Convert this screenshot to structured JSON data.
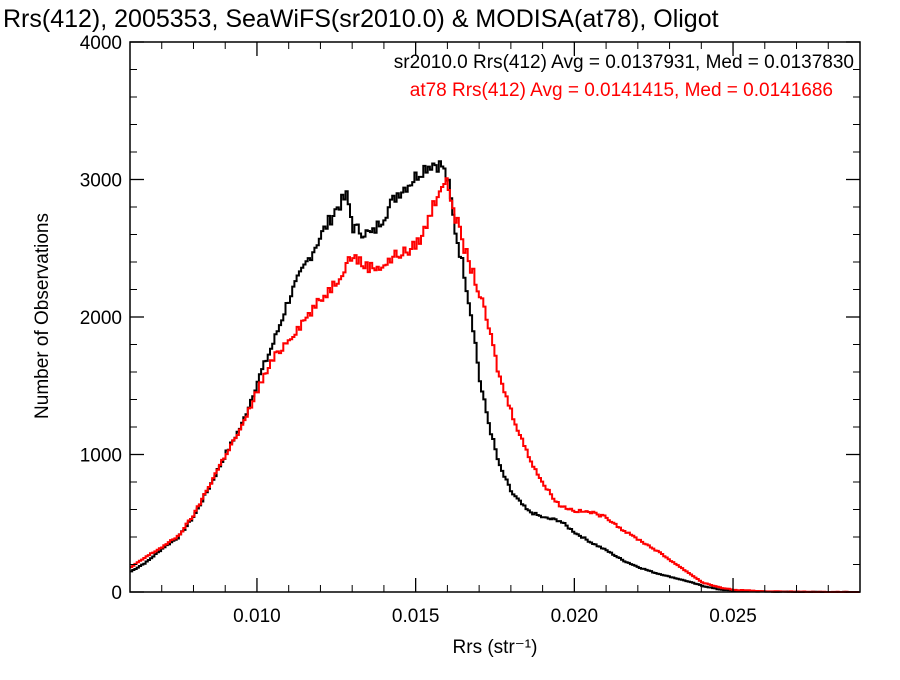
{
  "chart_data": {
    "type": "line",
    "title": "Rrs(412), 2005353, SeaWiFS(sr2010.0) & MODISA(at78), Oligot",
    "xlabel": "Rrs (str⁻¹)",
    "ylabel": "Number of Observations",
    "xlim": [
      0.006,
      0.029
    ],
    "ylim": [
      0,
      4000
    ],
    "xticks": [
      0.01,
      0.015,
      0.02,
      0.025
    ],
    "xtick_labels": [
      "0.010",
      "0.015",
      "0.020",
      "0.025"
    ],
    "yticks": [
      0,
      1000,
      2000,
      3000,
      4000
    ],
    "ytick_labels": [
      "0",
      "1000",
      "2000",
      "3000",
      "4000"
    ],
    "grid": false,
    "legend_position": "top-right",
    "series": [
      {
        "name": "sr2010.0",
        "legend": "sr2010.0 Rrs(412) Avg = 0.0137931, Med = 0.0137830",
        "color": "#000000",
        "x": [
          0.006,
          0.0065,
          0.007,
          0.0075,
          0.008,
          0.0085,
          0.009,
          0.0095,
          0.01,
          0.0105,
          0.011,
          0.0115,
          0.012,
          0.0125,
          0.0128,
          0.013,
          0.0133,
          0.0136,
          0.014,
          0.0144,
          0.0148,
          0.0152,
          0.0155,
          0.0158,
          0.016,
          0.0162,
          0.0165,
          0.0168,
          0.017,
          0.0173,
          0.0176,
          0.018,
          0.0185,
          0.019,
          0.0195,
          0.02,
          0.0205,
          0.021,
          0.0215,
          0.022,
          0.0225,
          0.023,
          0.0235,
          0.024,
          0.0245,
          0.025,
          0.026,
          0.027,
          0.028,
          0.029
        ],
        "values": [
          150,
          220,
          320,
          400,
          560,
          780,
          1010,
          1220,
          1540,
          1820,
          2150,
          2380,
          2600,
          2800,
          2880,
          2650,
          2620,
          2600,
          2750,
          2900,
          2980,
          3080,
          3120,
          3100,
          2970,
          2650,
          2320,
          1900,
          1520,
          1200,
          920,
          720,
          590,
          540,
          520,
          430,
          360,
          300,
          230,
          180,
          140,
          110,
          80,
          45,
          20,
          8,
          3,
          1,
          0,
          0
        ]
      },
      {
        "name": "at78",
        "legend": "at78 Rrs(412) Avg = 0.0141415, Med = 0.0141686",
        "color": "#ff0000",
        "x": [
          0.006,
          0.0065,
          0.007,
          0.0075,
          0.008,
          0.0085,
          0.009,
          0.0095,
          0.01,
          0.0105,
          0.011,
          0.0115,
          0.012,
          0.0125,
          0.0128,
          0.013,
          0.0133,
          0.0136,
          0.014,
          0.0144,
          0.0148,
          0.0152,
          0.0155,
          0.0158,
          0.016,
          0.0162,
          0.0165,
          0.0168,
          0.017,
          0.0173,
          0.0176,
          0.018,
          0.0185,
          0.019,
          0.0195,
          0.02,
          0.0205,
          0.021,
          0.0215,
          0.022,
          0.0225,
          0.023,
          0.0235,
          0.024,
          0.0245,
          0.025,
          0.026,
          0.027,
          0.028,
          0.029
        ],
        "values": [
          180,
          260,
          330,
          410,
          570,
          790,
          1010,
          1200,
          1480,
          1700,
          1850,
          1990,
          2130,
          2270,
          2400,
          2450,
          2380,
          2360,
          2380,
          2460,
          2480,
          2600,
          2800,
          2980,
          2950,
          2750,
          2500,
          2300,
          2150,
          1900,
          1570,
          1300,
          1000,
          780,
          630,
          590,
          580,
          540,
          450,
          380,
          310,
          230,
          150,
          70,
          35,
          15,
          5,
          2,
          0,
          0
        ]
      }
    ]
  }
}
